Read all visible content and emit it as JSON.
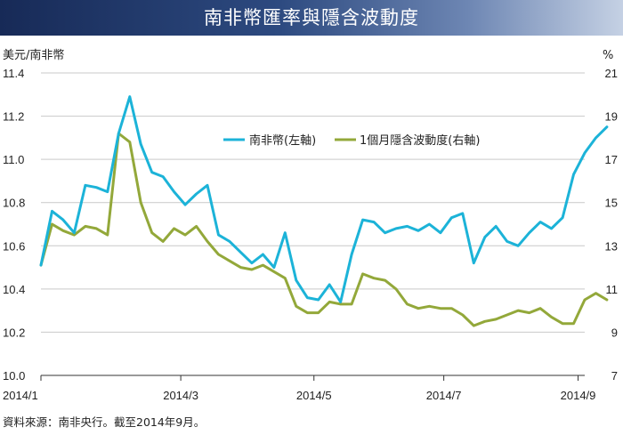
{
  "chart_data": {
    "type": "line",
    "title": "南非幣匯率與隱含波動度",
    "left_axis_label": "美元/南非幣",
    "right_axis_label": "%",
    "ylim_left": [
      10.0,
      11.4
    ],
    "yticks_left": [
      "10.0",
      "10.2",
      "10.4",
      "10.6",
      "10.8",
      "11.0",
      "11.2",
      "11.4"
    ],
    "ylim_right": [
      7,
      21
    ],
    "yticks_right": [
      "7",
      "9",
      "11",
      "13",
      "15",
      "17",
      "19",
      "21"
    ],
    "x_start": "2014/1",
    "x_end_index": 49,
    "x_ticks": [
      {
        "label": "2014/1",
        "index": 0
      },
      {
        "label": "2014/3",
        "index": 12.6
      },
      {
        "label": "2014/5",
        "index": 24.6
      },
      {
        "label": "2014/7",
        "index": 36.3
      },
      {
        "label": "2014/9",
        "index": 48.4
      }
    ],
    "grid": true,
    "legend_position": "top-right",
    "series": [
      {
        "name": "南非幣(左軸)",
        "axis": "left",
        "color": "#1cb3d8",
        "values": [
          10.51,
          10.76,
          10.72,
          10.66,
          10.88,
          10.87,
          10.85,
          11.12,
          11.29,
          11.07,
          10.94,
          10.92,
          10.85,
          10.79,
          10.84,
          10.88,
          10.65,
          10.62,
          10.57,
          10.52,
          10.56,
          10.5,
          10.66,
          10.44,
          10.36,
          10.35,
          10.42,
          10.34,
          10.56,
          10.72,
          10.71,
          10.66,
          10.68,
          10.69,
          10.67,
          10.7,
          10.66,
          10.73,
          10.75,
          10.52,
          10.64,
          10.69,
          10.62,
          10.6,
          10.66,
          10.71,
          10.68,
          10.73,
          10.93,
          11.03,
          11.1,
          11.15
        ]
      },
      {
        "name": "1個月隱含波動度(右軸)",
        "axis": "right",
        "color": "#93a83a",
        "values": [
          12.1,
          14.0,
          13.7,
          13.5,
          13.9,
          13.8,
          13.5,
          18.2,
          17.8,
          15.0,
          13.6,
          13.2,
          13.8,
          13.5,
          13.9,
          13.2,
          12.6,
          12.3,
          12.0,
          11.9,
          12.1,
          11.8,
          11.5,
          10.2,
          9.9,
          9.9,
          10.4,
          10.3,
          10.3,
          11.7,
          11.5,
          11.4,
          11.0,
          10.3,
          10.1,
          10.2,
          10.1,
          10.1,
          9.8,
          9.3,
          9.5,
          9.6,
          9.8,
          10.0,
          9.9,
          10.1,
          9.7,
          9.4,
          9.4,
          10.5,
          10.8,
          10.5
        ]
      }
    ]
  },
  "source_text": "資料來源：南非央行。截至2014年9月。"
}
